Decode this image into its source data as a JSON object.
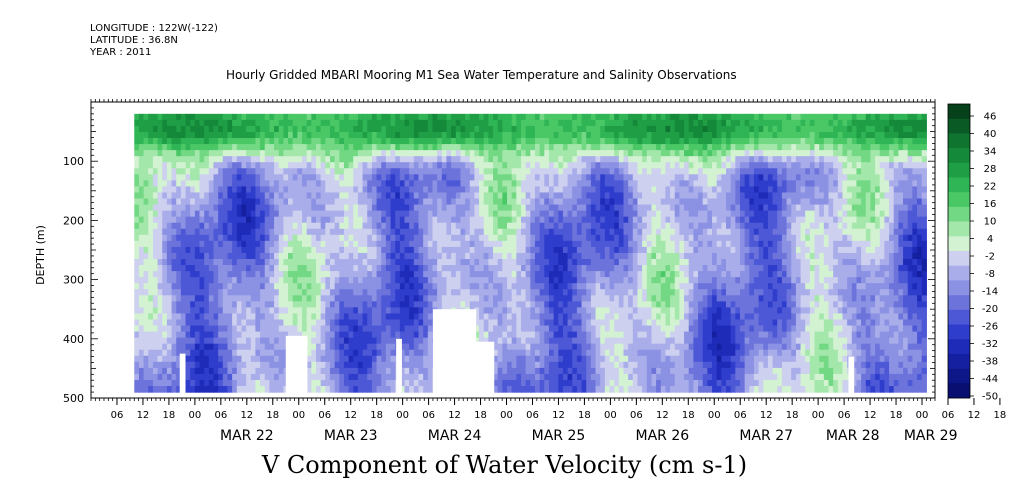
{
  "header": {
    "longitude": "LONGITUDE : 122W(-122)",
    "latitude": "LATITUDE : 36.8N",
    "year": "YEAR : 2011"
  },
  "title": "Hourly Gridded MBARI Mooring M1 Sea Water Temperature and Salinity Observations",
  "bottom_title": "V Component of Water Velocity (cm s-1)",
  "chart_data": {
    "type": "heatmap",
    "title": "Hourly Gridded MBARI Mooring M1 Sea Water Temperature and Salinity Observations",
    "xlabel": "",
    "ylabel": "DEPTH (m)",
    "x_start": "2011-03-21T00:00",
    "x_end": "2011-03-29T03:00",
    "data_start": "2011-03-21T10:00",
    "data_end": "2011-03-29T01:00",
    "y_range": [
      0,
      500
    ],
    "y_reversed": true,
    "y_ticks": [
      100,
      200,
      300,
      400,
      500
    ],
    "x_hour_ticks": [
      "06",
      "12",
      "18",
      "00",
      "06",
      "12",
      "18",
      "00",
      "06",
      "12",
      "18",
      "00",
      "06",
      "12",
      "18",
      "00",
      "06",
      "12",
      "18",
      "00",
      "06",
      "12",
      "18",
      "00",
      "06",
      "12",
      "18",
      "00",
      "06",
      "12",
      "18",
      "00",
      "06",
      "12",
      "18",
      "00"
    ],
    "x_day_labels": [
      "MAR 22",
      "MAR 23",
      "MAR 24",
      "MAR 25",
      "MAR 26",
      "MAR 27",
      "MAR 28",
      "MAR 29"
    ],
    "colorbar": {
      "ticks": [
        "46",
        "40",
        "34",
        "28",
        "22",
        "16",
        "10",
        "4",
        "-2",
        "-8",
        "-14",
        "-20",
        "-26",
        "-32",
        "-38",
        "-44",
        "-50"
      ],
      "colors": [
        "#06411c",
        "#0a5a26",
        "#0e7430",
        "#15893a",
        "#1f9e46",
        "#2fb555",
        "#4ac866",
        "#72d884",
        "#a4e7ab",
        "#d3f2d2",
        "#cdd0ee",
        "#a9adea",
        "#8b91e3",
        "#6c74dc",
        "#4d58d6",
        "#2f3dcc",
        "#1e2bb8",
        "#1420a0",
        "#0d1788",
        "#080f70"
      ]
    },
    "approx_structure": {
      "surface_layer": {
        "depth_range": [
          20,
          100
        ],
        "values": "10 to 40 (positive, green)"
      },
      "interior": {
        "depth_range": [
          100,
          490
        ],
        "values": "-30 to 10 (mostly negative, blue/purple)"
      }
    }
  }
}
